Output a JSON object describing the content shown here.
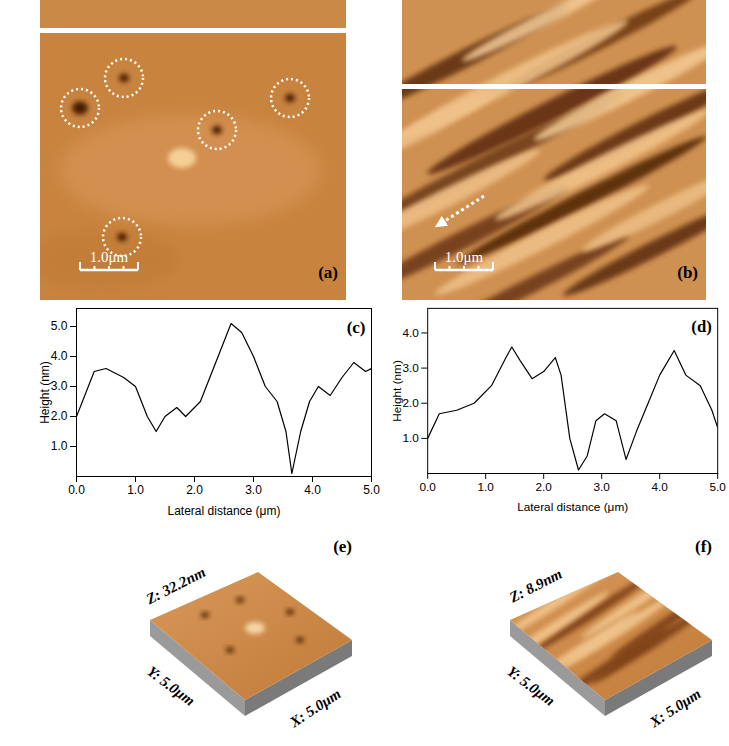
{
  "chart_data": [
    {
      "type": "line",
      "annotations": [
        "(c)"
      ],
      "x_label": "Lateral distance (μm)",
      "y_label": "Height (nm)",
      "x": [
        0,
        0.3,
        0.5,
        0.8,
        1.0,
        1.2,
        1.35,
        1.5,
        1.7,
        1.85,
        2.1,
        2.3,
        2.5,
        2.62,
        2.8,
        3.0,
        3.2,
        3.4,
        3.55,
        3.65,
        3.8,
        3.95,
        4.1,
        4.3,
        4.5,
        4.7,
        4.9,
        5.0
      ],
      "values": [
        2.0,
        3.5,
        3.6,
        3.3,
        3.0,
        2.0,
        1.5,
        2.0,
        2.3,
        2.0,
        2.5,
        3.5,
        4.5,
        5.1,
        4.8,
        4.0,
        3.0,
        2.5,
        1.5,
        0.1,
        1.5,
        2.5,
        3.0,
        2.7,
        3.3,
        3.8,
        3.5,
        3.6
      ],
      "color": "#000000",
      "xlim": [
        0,
        5
      ],
      "xticks": [
        0,
        1,
        2,
        3,
        4,
        5
      ],
      "ylim": [
        0,
        5.6
      ],
      "yticks": [
        1,
        2,
        3,
        4,
        5
      ]
    },
    {
      "type": "line",
      "annotations": [
        "(d)"
      ],
      "x_label": "Lateral distance (μm)",
      "y_label": "Height (nm)",
      "x": [
        0,
        0.2,
        0.5,
        0.8,
        1.1,
        1.35,
        1.45,
        1.6,
        1.8,
        2.0,
        2.2,
        2.3,
        2.45,
        2.6,
        2.75,
        2.9,
        3.05,
        3.25,
        3.42,
        3.6,
        3.8,
        4.0,
        4.25,
        4.45,
        4.7,
        4.9,
        5.0
      ],
      "values": [
        1.0,
        1.7,
        1.8,
        2.0,
        2.5,
        3.3,
        3.6,
        3.2,
        2.7,
        2.9,
        3.3,
        2.8,
        1.0,
        0.1,
        0.5,
        1.5,
        1.7,
        1.5,
        0.4,
        1.2,
        2.0,
        2.8,
        3.5,
        2.8,
        2.5,
        1.8,
        1.3
      ],
      "color": "#000000",
      "xlim": [
        0,
        5
      ],
      "xticks": [
        0,
        1,
        2,
        3,
        4,
        5
      ],
      "ylim": [
        0,
        4.7
      ],
      "yticks": [
        1,
        2,
        3,
        4
      ]
    }
  ],
  "images": [
    {
      "label": "(a)",
      "scale_bar": "1.0μm"
    },
    {
      "label": "(b)",
      "scale_bar": "1.0μm"
    }
  ],
  "surfaces": [
    {
      "label": "(e)",
      "z": "Z: 32.2nm",
      "y": "Y: 5.0μm",
      "x": "X: 5.0μm"
    },
    {
      "label": "(f)",
      "z": "Z: 8.9nm",
      "y": "Y: 5.0μm",
      "x": "X: 5.0μm"
    }
  ]
}
